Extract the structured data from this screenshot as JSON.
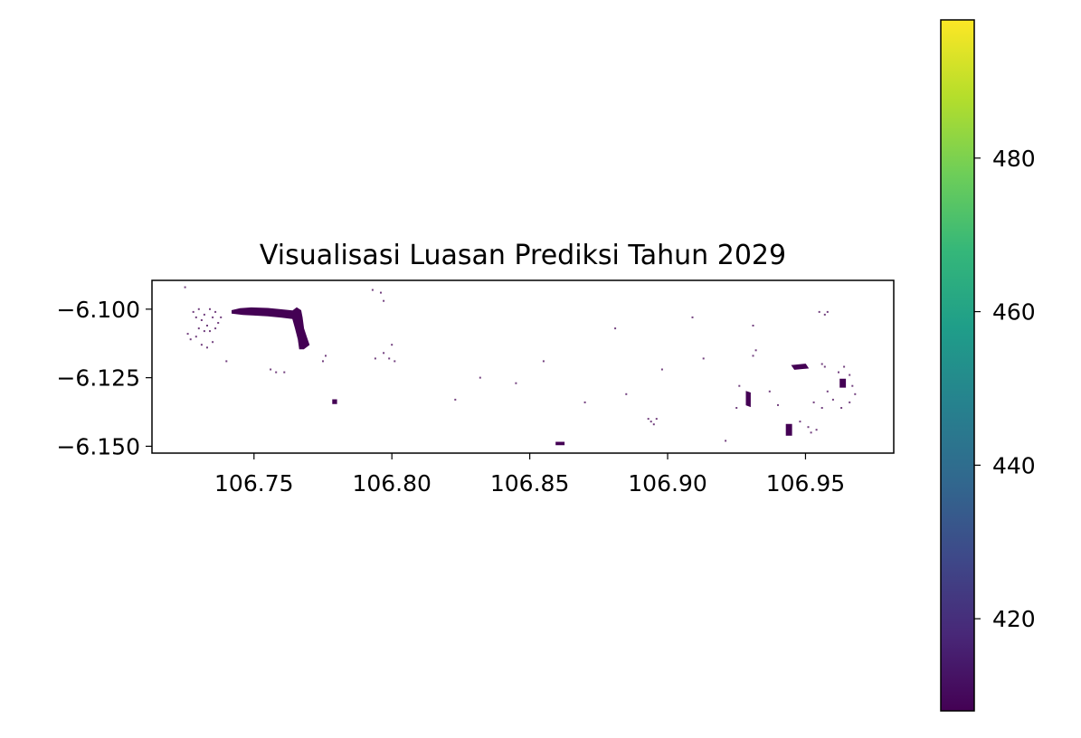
{
  "chart_data": {
    "type": "map",
    "title": "Visualisasi Luasan Prediksi Tahun 2029",
    "xlabel": "",
    "ylabel": "",
    "xlim": [
      106.713,
      106.982
    ],
    "ylim": [
      -6.1525,
      -6.0895
    ],
    "x_ticks": [
      106.75,
      106.8,
      106.85,
      106.9,
      106.95
    ],
    "x_tick_labels": [
      "106.75",
      "106.80",
      "106.85",
      "106.90",
      "106.95"
    ],
    "y_ticks": [
      -6.1,
      -6.125,
      -6.15
    ],
    "y_tick_labels": [
      "−6.100",
      "−6.125",
      "−6.150"
    ],
    "colormap": "viridis",
    "fill_color": "#440154",
    "colorbar": {
      "range": [
        408,
        498
      ],
      "ticks": [
        420,
        440,
        460,
        480
      ],
      "tick_labels": [
        "420",
        "440",
        "460",
        "480"
      ],
      "colors": [
        "#440154",
        "#482878",
        "#3e4989",
        "#31688e",
        "#26828e",
        "#1f9e89",
        "#35b779",
        "#6ece58",
        "#b5de2b",
        "#fde725"
      ]
    },
    "shapes": {
      "solid_areas": [
        {
          "name": "main-coastal-area",
          "points": [
            [
              106.742,
              -6.1005
            ],
            [
              106.745,
              -6.0998
            ],
            [
              106.749,
              -6.0995
            ],
            [
              106.755,
              -6.0997
            ],
            [
              106.76,
              -6.1002
            ],
            [
              106.764,
              -6.1006
            ],
            [
              106.7655,
              -6.0995
            ],
            [
              106.767,
              -6.1005
            ],
            [
              106.7675,
              -6.103
            ],
            [
              106.768,
              -6.107
            ],
            [
              106.769,
              -6.11
            ],
            [
              106.77,
              -6.113
            ],
            [
              106.768,
              -6.1145
            ],
            [
              106.7665,
              -6.1145
            ],
            [
              106.766,
              -6.111
            ],
            [
              106.765,
              -6.107
            ],
            [
              106.764,
              -6.1035
            ],
            [
              106.76,
              -6.103
            ],
            [
              106.755,
              -6.1025
            ],
            [
              106.75,
              -6.1022
            ],
            [
              106.746,
              -6.102
            ],
            [
              106.742,
              -6.1015
            ]
          ]
        },
        {
          "name": "spot-east-1",
          "points": [
            [
              106.945,
              -6.1205
            ],
            [
              106.95,
              -6.12
            ],
            [
              106.951,
              -6.1215
            ],
            [
              106.946,
              -6.122
            ]
          ]
        },
        {
          "name": "spot-east-2",
          "points": [
            [
              106.9285,
              -6.13
            ],
            [
              106.93,
              -6.1305
            ],
            [
              106.93,
              -6.1355
            ],
            [
              106.9285,
              -6.135
            ]
          ]
        },
        {
          "name": "spot-east-3",
          "points": [
            [
              106.943,
              -6.142
            ],
            [
              106.945,
              -6.142
            ],
            [
              106.945,
              -6.146
            ],
            [
              106.943,
              -6.146
            ]
          ]
        },
        {
          "name": "spot-east-4",
          "points": [
            [
              106.9625,
              -6.1255
            ],
            [
              106.9645,
              -6.1255
            ],
            [
              106.9645,
              -6.1285
            ],
            [
              106.9625,
              -6.1285
            ]
          ]
        },
        {
          "name": "spot-south",
          "points": [
            [
              106.8595,
              -6.1485
            ],
            [
              106.8625,
              -6.1485
            ],
            [
              106.8625,
              -6.1495
            ],
            [
              106.8595,
              -6.1495
            ]
          ]
        },
        {
          "name": "spot-center-left",
          "points": [
            [
              106.7785,
              -6.133
            ],
            [
              106.78,
              -6.133
            ],
            [
              106.78,
              -6.1345
            ],
            [
              106.7785,
              -6.1345
            ]
          ]
        }
      ],
      "scatter": [
        [
          106.728,
          -6.101
        ],
        [
          106.729,
          -6.103
        ],
        [
          106.73,
          -6.1
        ],
        [
          106.731,
          -6.104
        ],
        [
          106.732,
          -6.102
        ],
        [
          106.733,
          -6.106
        ],
        [
          106.734,
          -6.1
        ],
        [
          106.735,
          -6.103
        ],
        [
          106.736,
          -6.101
        ],
        [
          106.737,
          -6.105
        ],
        [
          106.73,
          -6.107
        ],
        [
          106.732,
          -6.108
        ],
        [
          106.734,
          -6.108
        ],
        [
          106.736,
          -6.107
        ],
        [
          106.729,
          -6.11
        ],
        [
          106.731,
          -6.113
        ],
        [
          106.733,
          -6.114
        ],
        [
          106.726,
          -6.109
        ],
        [
          106.727,
          -6.111
        ],
        [
          106.735,
          -6.112
        ],
        [
          106.738,
          -6.103
        ],
        [
          106.74,
          -6.119
        ],
        [
          106.725,
          -6.092
        ],
        [
          106.775,
          -6.119
        ],
        [
          106.776,
          -6.117
        ],
        [
          106.756,
          -6.122
        ],
        [
          106.758,
          -6.123
        ],
        [
          106.761,
          -6.123
        ],
        [
          106.793,
          -6.093
        ],
        [
          106.796,
          -6.094
        ],
        [
          106.797,
          -6.097
        ],
        [
          106.794,
          -6.118
        ],
        [
          106.797,
          -6.116
        ],
        [
          106.799,
          -6.118
        ],
        [
          106.8,
          -6.113
        ],
        [
          106.801,
          -6.119
        ],
        [
          106.893,
          -6.14
        ],
        [
          106.894,
          -6.141
        ],
        [
          106.895,
          -6.142
        ],
        [
          106.896,
          -6.14
        ],
        [
          106.931,
          -6.106
        ],
        [
          106.932,
          -6.115
        ],
        [
          106.931,
          -6.117
        ],
        [
          106.926,
          -6.128
        ],
        [
          106.925,
          -6.136
        ],
        [
          106.921,
          -6.148
        ],
        [
          106.955,
          -6.101
        ],
        [
          106.957,
          -6.102
        ],
        [
          106.958,
          -6.101
        ],
        [
          106.956,
          -6.12
        ],
        [
          106.957,
          -6.121
        ],
        [
          106.962,
          -6.123
        ],
        [
          106.964,
          -6.121
        ],
        [
          106.966,
          -6.124
        ],
        [
          106.967,
          -6.128
        ],
        [
          106.968,
          -6.131
        ],
        [
          106.966,
          -6.134
        ],
        [
          106.963,
          -6.136
        ],
        [
          106.96,
          -6.133
        ],
        [
          106.958,
          -6.13
        ],
        [
          106.956,
          -6.136
        ],
        [
          106.953,
          -6.134
        ],
        [
          106.948,
          -6.141
        ],
        [
          106.951,
          -6.143
        ],
        [
          106.952,
          -6.145
        ],
        [
          106.954,
          -6.144
        ],
        [
          106.94,
          -6.135
        ],
        [
          106.937,
          -6.13
        ],
        [
          106.898,
          -6.122
        ],
        [
          106.885,
          -6.131
        ],
        [
          106.855,
          -6.119
        ],
        [
          106.845,
          -6.127
        ],
        [
          106.823,
          -6.133
        ],
        [
          106.832,
          -6.125
        ],
        [
          106.87,
          -6.134
        ],
        [
          106.909,
          -6.103
        ],
        [
          106.913,
          -6.118
        ],
        [
          106.881,
          -6.107
        ]
      ]
    }
  }
}
